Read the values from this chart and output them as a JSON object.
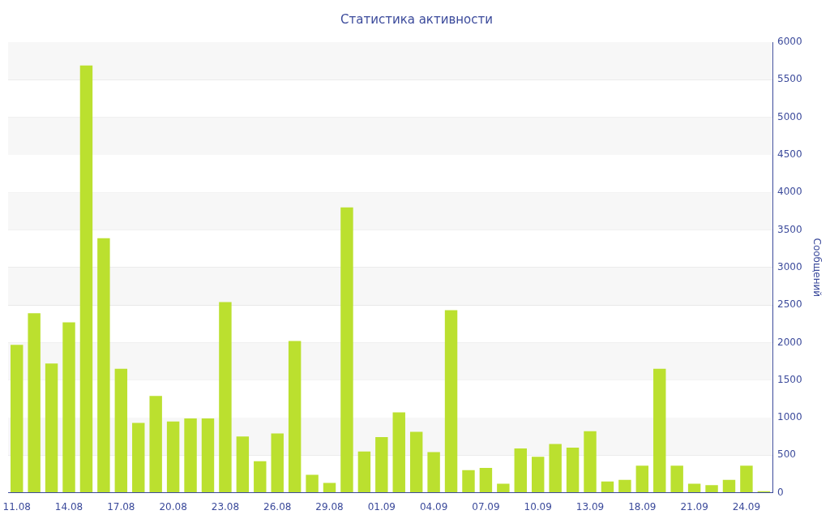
{
  "chart_data": {
    "type": "bar",
    "title": "Статистика активности",
    "ylabel": "Сообщений",
    "categories": [
      "11.08",
      null,
      null,
      "14.08",
      null,
      null,
      "17.08",
      null,
      null,
      "20.08",
      null,
      null,
      "23.08",
      null,
      null,
      "26.08",
      null,
      null,
      "29.08",
      null,
      null,
      "01.09",
      null,
      null,
      "04.09",
      null,
      null,
      "07.09",
      null,
      null,
      "10.09",
      null,
      null,
      "13.09",
      null,
      null,
      "18.09",
      null,
      null,
      "21.09",
      null,
      null,
      "24.09",
      null
    ],
    "values": [
      1970,
      2390,
      1720,
      2270,
      5690,
      3390,
      1650,
      930,
      1290,
      950,
      990,
      990,
      2540,
      750,
      420,
      790,
      2020,
      240,
      130,
      3800,
      550,
      740,
      1070,
      810,
      540,
      2430,
      300,
      330,
      120,
      590,
      480,
      650,
      600,
      820,
      150,
      170,
      360,
      1650,
      360,
      120,
      100,
      170,
      360,
      20
    ],
    "color": "#bbe02f",
    "ylim": [
      0,
      6000
    ],
    "yticks": [
      0,
      500,
      1000,
      1500,
      2000,
      2500,
      3000,
      3500,
      4000,
      4500,
      5000,
      5500,
      6000
    ],
    "grid": "y",
    "legend": false
  }
}
